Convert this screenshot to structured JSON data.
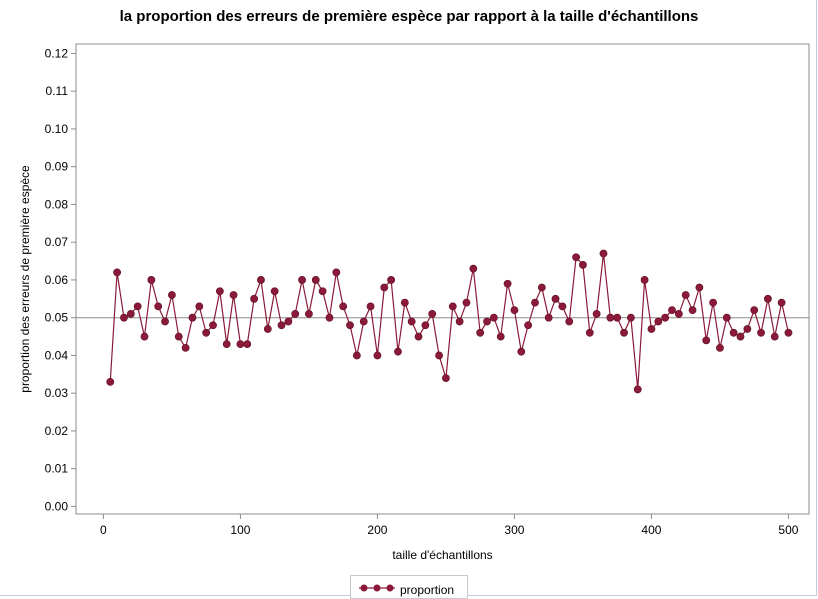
{
  "chart_data": {
    "type": "line",
    "title": "la proportion des erreurs de première espèce par rapport à la taille d'échantillons",
    "xlabel": "taille d'échantillons",
    "ylabel": "proportion des erreurs de première espèce",
    "xlim": [
      -20,
      515
    ],
    "ylim": [
      -0.002,
      0.1225
    ],
    "xticks": [
      0,
      100,
      200,
      300,
      400,
      500
    ],
    "xtick_labels": [
      "0",
      "100",
      "200",
      "300",
      "400",
      "500"
    ],
    "yticks": [
      0.0,
      0.01,
      0.02,
      0.03,
      0.04,
      0.05,
      0.06,
      0.07,
      0.08,
      0.09,
      0.1,
      0.11,
      0.12
    ],
    "ytick_labels": [
      "0.00",
      "0.01",
      "0.02",
      "0.03",
      "0.04",
      "0.05",
      "0.06",
      "0.07",
      "0.08",
      "0.09",
      "0.10",
      "0.11",
      "0.12"
    ],
    "reference_line": 0.05,
    "grid": false,
    "legend_position": "bottom-center",
    "color": "#8b1a3a",
    "series": [
      {
        "name": "proportion",
        "x": [
          5,
          10,
          15,
          20,
          25,
          30,
          35,
          40,
          45,
          50,
          55,
          60,
          65,
          70,
          75,
          80,
          85,
          90,
          95,
          100,
          105,
          110,
          115,
          120,
          125,
          130,
          135,
          140,
          145,
          150,
          155,
          160,
          165,
          170,
          175,
          180,
          185,
          190,
          195,
          200,
          205,
          210,
          215,
          220,
          225,
          230,
          235,
          240,
          245,
          250,
          255,
          260,
          265,
          270,
          275,
          280,
          285,
          290,
          295,
          300,
          305,
          310,
          315,
          320,
          325,
          330,
          335,
          340,
          345,
          350,
          355,
          360,
          365,
          370,
          375,
          380,
          385,
          390,
          395,
          400,
          405,
          410,
          415,
          420,
          425,
          430,
          435,
          440,
          445,
          450,
          455,
          460,
          465,
          470,
          475,
          480,
          485,
          490,
          495,
          500
        ],
        "values": [
          0.033,
          0.062,
          0.05,
          0.051,
          0.053,
          0.045,
          0.06,
          0.053,
          0.049,
          0.056,
          0.045,
          0.042,
          0.05,
          0.053,
          0.046,
          0.048,
          0.057,
          0.043,
          0.056,
          0.043,
          0.043,
          0.055,
          0.06,
          0.047,
          0.057,
          0.048,
          0.049,
          0.051,
          0.06,
          0.051,
          0.06,
          0.057,
          0.05,
          0.062,
          0.053,
          0.048,
          0.04,
          0.049,
          0.053,
          0.04,
          0.058,
          0.06,
          0.041,
          0.054,
          0.049,
          0.045,
          0.048,
          0.051,
          0.04,
          0.034,
          0.053,
          0.049,
          0.054,
          0.063,
          0.046,
          0.049,
          0.05,
          0.045,
          0.059,
          0.052,
          0.041,
          0.048,
          0.054,
          0.058,
          0.05,
          0.055,
          0.053,
          0.049,
          0.066,
          0.064,
          0.046,
          0.051,
          0.067,
          0.05,
          0.05,
          0.046,
          0.05,
          0.031,
          0.06,
          0.047,
          0.049,
          0.05,
          0.052,
          0.051,
          0.056,
          0.052,
          0.058,
          0.044,
          0.054,
          0.042,
          0.05,
          0.046,
          0.045,
          0.047,
          0.052,
          0.046,
          0.055,
          0.045,
          0.054,
          0.046
        ]
      }
    ]
  },
  "legend": {
    "label": "proportion"
  }
}
